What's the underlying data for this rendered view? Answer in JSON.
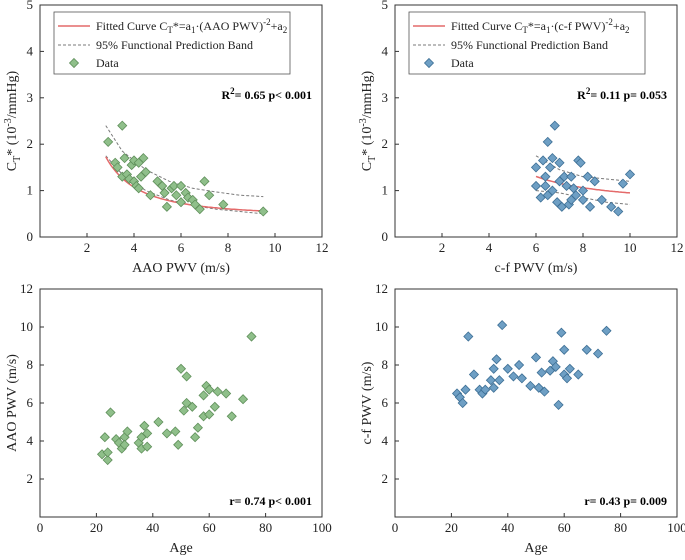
{
  "colors": {
    "green_fill": "#8fbf8a",
    "green_edge": "#5f8f5a",
    "blue_fill": "#6e9fc4",
    "blue_edge": "#3d6f95",
    "fit_line": "#e46a6a",
    "band": "#7a7a7a"
  },
  "chart_data": [
    {
      "type": "scatter",
      "id": "a",
      "xlabel": "AAO PWV (m/s)",
      "ylabel_main": "C",
      "ylabel_sub": "T",
      "ylabel_rest": "* (10",
      "ylabel_sup": "-3",
      "ylabel_end": "/mmHg)",
      "xlim": [
        0,
        12
      ],
      "ylim": [
        0,
        5
      ],
      "xticks": [
        2,
        4,
        6,
        8,
        10,
        12
      ],
      "yticks": [
        0,
        1,
        2,
        3,
        4,
        5
      ],
      "stat_text": "R",
      "stat_sup": "2",
      "stat_rest": "= 0.65  p< 0.001",
      "legend": {
        "fit": "Fitted Curve C",
        "fit_sub1": "T",
        "fit_mid": "*=a",
        "fit_sub2": "1",
        "fit_tail": "·(AAO PWV)",
        "fit_sup": "-2",
        "fit_end": "+a",
        "fit_sub3": "2",
        "band": "95% Functional Prediction Band",
        "data": "Data"
      },
      "fit": {
        "a1": 10.0,
        "a2": 0.45,
        "xrange": [
          2.8,
          9.5
        ]
      },
      "band_upper": [
        [
          2.8,
          2.4
        ],
        [
          3.5,
          1.85
        ],
        [
          4.5,
          1.45
        ],
        [
          5.5,
          1.2
        ],
        [
          6.5,
          1.05
        ],
        [
          7.5,
          0.97
        ],
        [
          8.5,
          0.9
        ],
        [
          9.5,
          0.87
        ]
      ],
      "band_lower": [
        [
          2.8,
          1.75
        ],
        [
          3.5,
          1.35
        ],
        [
          4.5,
          1.0
        ],
        [
          5.5,
          0.8
        ],
        [
          6.5,
          0.68
        ],
        [
          7.5,
          0.6
        ],
        [
          8.5,
          0.55
        ],
        [
          9.5,
          0.5
        ]
      ],
      "points": [
        [
          2.9,
          2.05
        ],
        [
          3.2,
          1.6
        ],
        [
          3.3,
          1.5
        ],
        [
          3.5,
          2.4
        ],
        [
          3.5,
          1.3
        ],
        [
          3.6,
          1.7
        ],
        [
          3.7,
          1.35
        ],
        [
          3.8,
          1.25
        ],
        [
          3.9,
          1.55
        ],
        [
          4.0,
          1.65
        ],
        [
          4.0,
          1.2
        ],
        [
          4.1,
          1.1
        ],
        [
          4.2,
          1.6
        ],
        [
          4.2,
          1.05
        ],
        [
          4.3,
          1.3
        ],
        [
          4.4,
          1.7
        ],
        [
          4.5,
          1.4
        ],
        [
          4.7,
          0.9
        ],
        [
          5.0,
          1.2
        ],
        [
          5.2,
          1.1
        ],
        [
          5.3,
          0.95
        ],
        [
          5.4,
          0.65
        ],
        [
          5.6,
          1.05
        ],
        [
          5.7,
          1.1
        ],
        [
          5.8,
          0.9
        ],
        [
          6.0,
          1.1
        ],
        [
          6.0,
          0.75
        ],
        [
          6.2,
          0.95
        ],
        [
          6.3,
          0.85
        ],
        [
          6.5,
          0.8
        ],
        [
          6.6,
          0.7
        ],
        [
          6.8,
          0.6
        ],
        [
          7.0,
          1.2
        ],
        [
          7.2,
          0.9
        ],
        [
          7.8,
          0.7
        ],
        [
          9.5,
          0.55
        ]
      ]
    },
    {
      "type": "scatter",
      "id": "b",
      "xlabel": "c-f PWV (m/s)",
      "ylabel_main": "C",
      "ylabel_sub": "T",
      "ylabel_rest": "* (10",
      "ylabel_sup": "-3",
      "ylabel_end": "/mmHg)",
      "xlim": [
        0,
        12
      ],
      "ylim": [
        0,
        5
      ],
      "xticks": [
        2,
        4,
        6,
        8,
        10,
        12
      ],
      "yticks": [
        0,
        1,
        2,
        3,
        4,
        5
      ],
      "stat_text": "R",
      "stat_sup": "2",
      "stat_rest": "= 0.11  p= 0.053",
      "legend": {
        "fit": "Fitted Curve C",
        "fit_sub1": "T",
        "fit_mid": "*=a",
        "fit_sub2": "1",
        "fit_tail": "·(c-f PWV)",
        "fit_sup": "-2",
        "fit_end": "+a",
        "fit_sub3": "2",
        "band": "95% Functional Prediction Band",
        "data": "Data"
      },
      "fit": {
        "a1": 20.0,
        "a2": 0.75,
        "xrange": [
          6.0,
          10.0
        ]
      },
      "band_upper": [
        [
          6.0,
          1.75
        ],
        [
          7.0,
          1.45
        ],
        [
          8.0,
          1.3
        ],
        [
          9.0,
          1.25
        ],
        [
          10.0,
          1.2
        ]
      ],
      "band_lower": [
        [
          6.0,
          1.0
        ],
        [
          7.0,
          0.95
        ],
        [
          8.0,
          0.85
        ],
        [
          9.0,
          0.75
        ],
        [
          10.0,
          0.7
        ]
      ],
      "points": [
        [
          6.0,
          1.1
        ],
        [
          6.0,
          1.5
        ],
        [
          6.2,
          0.85
        ],
        [
          6.3,
          1.65
        ],
        [
          6.4,
          1.1
        ],
        [
          6.4,
          1.3
        ],
        [
          6.5,
          2.05
        ],
        [
          6.5,
          0.9
        ],
        [
          6.6,
          1.5
        ],
        [
          6.7,
          1.7
        ],
        [
          6.7,
          1.0
        ],
        [
          6.8,
          2.4
        ],
        [
          6.9,
          0.75
        ],
        [
          7.0,
          1.2
        ],
        [
          7.0,
          1.6
        ],
        [
          7.1,
          0.65
        ],
        [
          7.2,
          1.3
        ],
        [
          7.3,
          1.1
        ],
        [
          7.4,
          0.7
        ],
        [
          7.5,
          0.8
        ],
        [
          7.5,
          1.3
        ],
        [
          7.6,
          1.05
        ],
        [
          7.7,
          0.9
        ],
        [
          7.8,
          1.65
        ],
        [
          7.9,
          1.6
        ],
        [
          8.0,
          1.0
        ],
        [
          8.0,
          0.8
        ],
        [
          8.2,
          1.3
        ],
        [
          8.3,
          0.65
        ],
        [
          8.5,
          1.2
        ],
        [
          8.8,
          0.8
        ],
        [
          9.2,
          0.65
        ],
        [
          9.5,
          0.55
        ],
        [
          9.7,
          1.15
        ],
        [
          10.0,
          1.35
        ]
      ]
    },
    {
      "type": "scatter",
      "id": "c",
      "xlabel": "Age",
      "ylabel": "AAO PWV (m/s)",
      "xlim": [
        0,
        100
      ],
      "ylim": [
        0,
        12
      ],
      "xticks": [
        0,
        20,
        40,
        60,
        80,
        100
      ],
      "yticks": [
        2,
        4,
        6,
        8,
        10,
        12
      ],
      "stat_plain": "r= 0.74  p< 0.001",
      "points": [
        [
          22,
          3.3
        ],
        [
          23,
          4.2
        ],
        [
          24,
          3.0
        ],
        [
          24,
          3.4
        ],
        [
          25,
          5.5
        ],
        [
          27,
          4.1
        ],
        [
          28,
          3.9
        ],
        [
          29,
          3.6
        ],
        [
          30,
          4.2
        ],
        [
          30,
          3.8
        ],
        [
          31,
          4.5
        ],
        [
          35,
          3.9
        ],
        [
          36,
          3.6
        ],
        [
          36,
          4.2
        ],
        [
          37,
          4.8
        ],
        [
          38,
          4.4
        ],
        [
          38,
          3.7
        ],
        [
          42,
          5.0
        ],
        [
          45,
          4.4
        ],
        [
          48,
          4.5
        ],
        [
          49,
          3.8
        ],
        [
          50,
          7.8
        ],
        [
          51,
          5.6
        ],
        [
          52,
          6.0
        ],
        [
          52,
          7.4
        ],
        [
          54,
          5.8
        ],
        [
          55,
          4.2
        ],
        [
          56,
          4.7
        ],
        [
          58,
          6.4
        ],
        [
          58,
          5.3
        ],
        [
          59,
          6.9
        ],
        [
          60,
          6.7
        ],
        [
          60,
          5.4
        ],
        [
          62,
          5.8
        ],
        [
          63,
          6.6
        ],
        [
          66,
          6.5
        ],
        [
          68,
          5.3
        ],
        [
          72,
          6.2
        ],
        [
          75,
          9.5
        ]
      ]
    },
    {
      "type": "scatter",
      "id": "d",
      "xlabel": "Age",
      "ylabel": "c-f PWV (m/s)",
      "xlim": [
        0,
        100
      ],
      "ylim": [
        0,
        12
      ],
      "xticks": [
        0,
        20,
        40,
        60,
        80,
        100
      ],
      "yticks": [
        2,
        4,
        6,
        8,
        10,
        12
      ],
      "stat_plain": "r= 0.43  p= 0.009",
      "points": [
        [
          22,
          6.5
        ],
        [
          23,
          6.3
        ],
        [
          24,
          6.0
        ],
        [
          25,
          6.7
        ],
        [
          26,
          9.5
        ],
        [
          28,
          7.5
        ],
        [
          30,
          6.7
        ],
        [
          31,
          6.5
        ],
        [
          32,
          6.7
        ],
        [
          34,
          7.2
        ],
        [
          35,
          6.8
        ],
        [
          35,
          7.8
        ],
        [
          36,
          8.3
        ],
        [
          37,
          7.2
        ],
        [
          38,
          10.1
        ],
        [
          40,
          7.8
        ],
        [
          42,
          7.4
        ],
        [
          44,
          8.0
        ],
        [
          45,
          7.3
        ],
        [
          48,
          6.9
        ],
        [
          50,
          8.4
        ],
        [
          51,
          6.8
        ],
        [
          52,
          7.6
        ],
        [
          53,
          6.6
        ],
        [
          55,
          7.7
        ],
        [
          56,
          8.2
        ],
        [
          57,
          7.9
        ],
        [
          58,
          5.9
        ],
        [
          59,
          9.7
        ],
        [
          60,
          7.5
        ],
        [
          60,
          8.8
        ],
        [
          61,
          7.3
        ],
        [
          62,
          7.8
        ],
        [
          65,
          7.5
        ],
        [
          68,
          8.8
        ],
        [
          72,
          8.6
        ],
        [
          75,
          9.8
        ]
      ]
    }
  ]
}
